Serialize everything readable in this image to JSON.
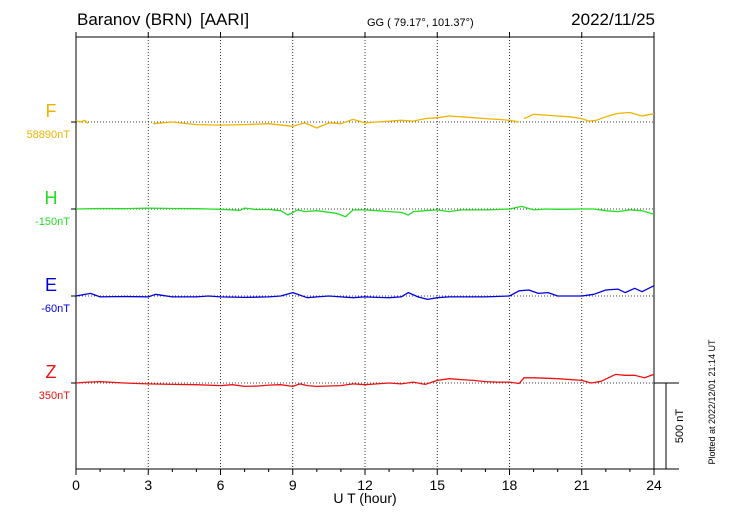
{
  "chart_data": {
    "type": "line",
    "station": "Baranov (BRN)",
    "observatory": "[AARI]",
    "coords": "GG ( 79.17°, 101.37°)",
    "date": "2022/11/25",
    "xlabel": "U T (hour)",
    "xlim": [
      0,
      24
    ],
    "x_ticks": [
      0,
      3,
      6,
      9,
      12,
      15,
      18,
      21,
      24
    ],
    "x_tick_labels": [
      "0",
      "3",
      "6",
      "9",
      "12",
      "15",
      "18",
      "21",
      "24"
    ],
    "grid": true,
    "scale_bar_label": "500 nT",
    "scale_bar_nT": 500,
    "footer": "Plotted at 2022/12/01 21:14 UT",
    "series": [
      {
        "name": "F",
        "baseline_label": "58890nT",
        "color": "#f0b400",
        "segments": [
          [
            [
              0,
              7
            ],
            [
              0.2,
              0
            ],
            [
              0.35,
              10
            ],
            [
              0.5,
              -8
            ]
          ],
          [
            [
              3.2,
              -10
            ],
            [
              4,
              0
            ],
            [
              5,
              -15
            ],
            [
              6,
              -18
            ],
            [
              7,
              -15
            ],
            [
              8,
              -10
            ],
            [
              9,
              -25
            ],
            [
              9.5,
              -5
            ],
            [
              10,
              -35
            ],
            [
              10.5,
              -5
            ],
            [
              11,
              -10
            ],
            [
              11.5,
              15
            ],
            [
              12,
              -5
            ],
            [
              12.5,
              0
            ],
            [
              13,
              5
            ],
            [
              13.5,
              10
            ],
            [
              14,
              5
            ],
            [
              14.5,
              20
            ],
            [
              15,
              25
            ],
            [
              15.5,
              35
            ],
            [
              16,
              30
            ],
            [
              16.5,
              25
            ],
            [
              17,
              20
            ],
            [
              17.5,
              15
            ],
            [
              18,
              10
            ],
            [
              18.4,
              0
            ]
          ],
          [
            [
              18.6,
              20
            ],
            [
              19,
              45
            ],
            [
              19.5,
              40
            ],
            [
              20,
              35
            ],
            [
              20.5,
              30
            ],
            [
              21,
              20
            ],
            [
              21.3,
              5
            ],
            [
              21.6,
              10
            ],
            [
              22,
              30
            ],
            [
              22.5,
              50
            ],
            [
              23,
              55
            ],
            [
              23.5,
              35
            ],
            [
              24,
              48
            ]
          ]
        ]
      },
      {
        "name": "H",
        "baseline_label": "-150nT",
        "color": "#22dd22",
        "segments": [
          [
            [
              0,
              0
            ],
            [
              1,
              3
            ],
            [
              2,
              2
            ],
            [
              3,
              5
            ],
            [
              4,
              3
            ],
            [
              5,
              2
            ],
            [
              5.5,
              0
            ],
            [
              6,
              -2
            ],
            [
              6.8,
              -8
            ],
            [
              7,
              5
            ],
            [
              7.5,
              -3
            ],
            [
              8,
              -3
            ],
            [
              8.5,
              -10
            ],
            [
              8.8,
              -35
            ],
            [
              9.2,
              -5
            ],
            [
              9.5,
              -15
            ],
            [
              10,
              -10
            ],
            [
              10.8,
              -25
            ],
            [
              11.2,
              -45
            ],
            [
              11.5,
              -5
            ],
            [
              12,
              -5
            ],
            [
              12.5,
              -10
            ],
            [
              13,
              -15
            ],
            [
              13.5,
              -20
            ],
            [
              13.8,
              -35
            ],
            [
              14,
              -15
            ],
            [
              14.5,
              -10
            ],
            [
              15,
              -5
            ],
            [
              15.5,
              -15
            ],
            [
              16,
              -5
            ],
            [
              17,
              -5
            ],
            [
              17.5,
              -3
            ],
            [
              18,
              0
            ],
            [
              18.5,
              15
            ],
            [
              19,
              -5
            ],
            [
              19.5,
              0
            ],
            [
              20,
              -2
            ],
            [
              21,
              0
            ],
            [
              21.5,
              0
            ],
            [
              22,
              -10
            ],
            [
              22.5,
              -15
            ],
            [
              23,
              -5
            ],
            [
              23.5,
              -10
            ],
            [
              24,
              -30
            ]
          ]
        ]
      },
      {
        "name": "E",
        "baseline_label": "-60nT",
        "color": "#0000dd",
        "segments": [
          [
            [
              0,
              0
            ],
            [
              0.6,
              15
            ],
            [
              1,
              -5
            ],
            [
              2,
              -3
            ],
            [
              3,
              -5
            ],
            [
              3.3,
              10
            ],
            [
              4,
              -5
            ],
            [
              5,
              -5
            ],
            [
              5.5,
              0
            ],
            [
              6,
              -5
            ],
            [
              7,
              -8
            ],
            [
              8,
              -5
            ],
            [
              8.5,
              0
            ],
            [
              9,
              20
            ],
            [
              9.3,
              5
            ],
            [
              9.6,
              -10
            ],
            [
              10,
              -5
            ],
            [
              10.5,
              0
            ],
            [
              11,
              -5
            ],
            [
              11.5,
              -10
            ],
            [
              12,
              -5
            ],
            [
              12.5,
              -8
            ],
            [
              13,
              -10
            ],
            [
              13.5,
              -5
            ],
            [
              13.8,
              20
            ],
            [
              14.2,
              -5
            ],
            [
              14.6,
              -20
            ],
            [
              15,
              -10
            ],
            [
              15.5,
              -5
            ],
            [
              16,
              -5
            ],
            [
              17,
              -5
            ],
            [
              18,
              0
            ],
            [
              18.4,
              30
            ],
            [
              18.8,
              35
            ],
            [
              19.2,
              15
            ],
            [
              19.6,
              20
            ],
            [
              20,
              0
            ],
            [
              20.5,
              0
            ],
            [
              21,
              0
            ],
            [
              21.5,
              10
            ],
            [
              22,
              35
            ],
            [
              22.5,
              40
            ],
            [
              22.8,
              20
            ],
            [
              23.2,
              45
            ],
            [
              23.5,
              25
            ],
            [
              24,
              60
            ]
          ]
        ]
      },
      {
        "name": "Z",
        "baseline_label": "350nT",
        "color": "#ee1111",
        "segments": [
          [
            [
              0,
              0
            ],
            [
              0.5,
              5
            ],
            [
              1,
              8
            ],
            [
              2,
              0
            ],
            [
              3,
              -5
            ],
            [
              4,
              -8
            ],
            [
              5,
              -10
            ],
            [
              6,
              -15
            ],
            [
              6.5,
              -10
            ],
            [
              7,
              -20
            ],
            [
              7.5,
              -18
            ],
            [
              8,
              -12
            ],
            [
              8.5,
              -10
            ],
            [
              9,
              -20
            ],
            [
              9.3,
              -5
            ],
            [
              9.6,
              -15
            ],
            [
              10,
              -20
            ],
            [
              11,
              -15
            ],
            [
              11.5,
              -5
            ],
            [
              12,
              -10
            ],
            [
              12.5,
              -5
            ],
            [
              13,
              0
            ],
            [
              13.5,
              -5
            ],
            [
              14,
              5
            ],
            [
              14.5,
              -8
            ],
            [
              15,
              15
            ],
            [
              15.5,
              25
            ],
            [
              16,
              20
            ],
            [
              16.5,
              15
            ],
            [
              17,
              8
            ],
            [
              17.5,
              5
            ],
            [
              18,
              5
            ],
            [
              18.4,
              -3
            ],
            [
              18.6,
              30
            ],
            [
              19,
              30
            ],
            [
              19.5,
              28
            ],
            [
              20,
              25
            ],
            [
              21,
              15
            ],
            [
              21.4,
              0
            ],
            [
              21.8,
              10
            ],
            [
              22.4,
              50
            ],
            [
              22.8,
              45
            ],
            [
              23.2,
              45
            ],
            [
              23.6,
              30
            ],
            [
              24,
              50
            ]
          ]
        ]
      }
    ]
  }
}
